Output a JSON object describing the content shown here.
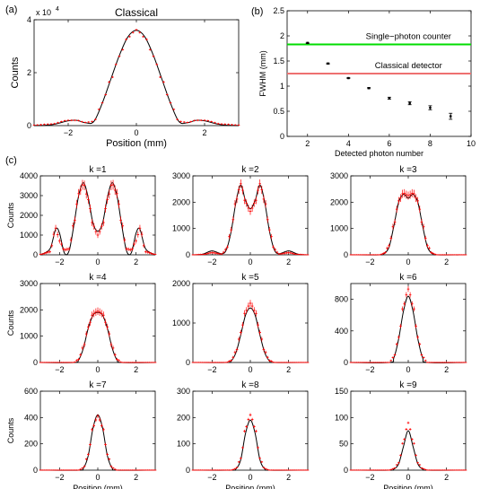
{
  "panel_labels": [
    "(a)",
    "(b)",
    "(c)"
  ],
  "chart_data": [
    {
      "id": "classical",
      "type": "line",
      "panel": "(a)",
      "title": "Classical",
      "xlabel": "Position (mm)",
      "ylabel": "Counts",
      "exponent_label": "x 10",
      "exponent_power": "4",
      "xlim": [
        -3,
        3
      ],
      "ylim": [
        0,
        4
      ],
      "xticks": [
        -2,
        0,
        2
      ],
      "yticks": [
        0,
        2,
        4
      ],
      "x": [
        -3.0,
        -2.5,
        -2.0,
        -1.75,
        -1.5,
        -1.25,
        -1.0,
        -0.75,
        -0.5,
        -0.25,
        0.0,
        0.25,
        0.5,
        0.75,
        1.0,
        1.25,
        1.5,
        1.75,
        2.0,
        2.5,
        3.0
      ],
      "series": [
        {
          "values": [
            0.0,
            0.03,
            0.18,
            0.2,
            0.11,
            0.15,
            0.85,
            1.75,
            2.65,
            3.35,
            3.6,
            3.35,
            2.65,
            1.75,
            0.85,
            0.15,
            0.11,
            0.2,
            0.18,
            0.03,
            0.0
          ],
          "color": "#000000",
          "style": "line"
        },
        {
          "values": [
            0.02,
            0.06,
            0.2,
            0.2,
            0.12,
            0.16,
            0.86,
            1.74,
            2.62,
            3.33,
            3.62,
            3.33,
            2.62,
            1.74,
            0.86,
            0.16,
            0.12,
            0.2,
            0.2,
            0.06,
            0.02
          ],
          "color": "#ff0000",
          "style": "errorbar"
        }
      ]
    },
    {
      "id": "fwhm",
      "type": "scatter",
      "panel": "(b)",
      "xlabel": "Detected photon number",
      "ylabel": "FWHM (mm)",
      "xlim": [
        1,
        10
      ],
      "ylim": [
        0,
        2.5
      ],
      "xticks": [
        2,
        4,
        6,
        8,
        10
      ],
      "yticks": [
        0,
        0.5,
        1,
        1.5,
        2,
        2.5
      ],
      "x": [
        2,
        3,
        4,
        5,
        6,
        7,
        8,
        9
      ],
      "values": [
        1.86,
        1.45,
        1.16,
        0.96,
        0.76,
        0.66,
        0.57,
        0.4
      ],
      "errors": [
        0.01,
        0.01,
        0.01,
        0.01,
        0.02,
        0.03,
        0.04,
        0.06
      ],
      "reference_lines": [
        {
          "label": "Single−photon counter",
          "y": 1.83,
          "color": "#00dd00"
        },
        {
          "label": "Classical detector",
          "y": 1.25,
          "color": "#ee7070"
        }
      ]
    },
    {
      "id": "k1",
      "type": "line",
      "panel": "(c)",
      "title": "k =1",
      "ylabel": "Counts",
      "xlabel": "",
      "xlim": [
        -3,
        3
      ],
      "ylim": [
        0,
        4000
      ],
      "xticks": [
        -2,
        0,
        2
      ],
      "yticks": [
        0,
        1000,
        2000,
        3000,
        4000
      ],
      "x": [
        -3.0,
        -2.5,
        -2.2,
        -2.0,
        -1.75,
        -1.5,
        -1.25,
        -1.0,
        -0.75,
        -0.5,
        -0.25,
        0.0,
        0.25,
        0.5,
        0.75,
        1.0,
        1.25,
        1.5,
        1.75,
        2.0,
        2.2,
        2.5,
        3.0
      ],
      "series": [
        {
          "values": [
            0,
            300,
            1300,
            1100,
            100,
            200,
            1500,
            3000,
            3650,
            2900,
            1600,
            1200,
            1600,
            2900,
            3650,
            3000,
            1500,
            200,
            100,
            1100,
            1300,
            300,
            0
          ],
          "color": "#000000",
          "style": "line"
        },
        {
          "values": [
            20,
            150,
            1350,
            700,
            250,
            300,
            1600,
            3100,
            3600,
            2800,
            1500,
            1000,
            1500,
            2800,
            3600,
            3100,
            1600,
            300,
            250,
            700,
            1350,
            150,
            20
          ],
          "color": "#ff0000",
          "style": "errorbar"
        }
      ]
    },
    {
      "id": "k2",
      "type": "line",
      "panel": "(c)",
      "title": "k =2",
      "ylabel": "",
      "xlabel": "",
      "xlim": [
        -3,
        3
      ],
      "ylim": [
        0,
        3000
      ],
      "xticks": [
        -2,
        0,
        2
      ],
      "yticks": [
        0,
        1000,
        2000,
        3000
      ],
      "x": [
        -3.0,
        -2.5,
        -2.0,
        -1.5,
        -1.25,
        -1.0,
        -0.75,
        -0.5,
        -0.25,
        0.0,
        0.25,
        0.5,
        0.75,
        1.0,
        1.25,
        1.5,
        2.0,
        2.5,
        3.0
      ],
      "series": [
        {
          "values": [
            0,
            20,
            150,
            40,
            200,
            900,
            2000,
            2650,
            2050,
            1750,
            2050,
            2650,
            2000,
            900,
            200,
            40,
            150,
            20,
            0
          ],
          "color": "#000000",
          "style": "line"
        },
        {
          "values": [
            0,
            10,
            80,
            30,
            220,
            950,
            2050,
            2700,
            2000,
            1650,
            2000,
            2700,
            2050,
            950,
            220,
            30,
            80,
            10,
            0
          ],
          "color": "#ff0000",
          "style": "errorbar"
        }
      ]
    },
    {
      "id": "k3",
      "type": "line",
      "panel": "(c)",
      "title": "k =3",
      "ylabel": "",
      "xlabel": "",
      "xlim": [
        -3,
        3
      ],
      "ylim": [
        0,
        3000
      ],
      "xticks": [
        -2,
        0,
        2
      ],
      "yticks": [
        0,
        1000,
        2000,
        3000
      ],
      "x": [
        -3.0,
        -1.5,
        -1.25,
        -1.0,
        -0.75,
        -0.5,
        -0.25,
        0.0,
        0.25,
        0.5,
        0.75,
        1.0,
        1.25,
        1.5,
        3.0
      ],
      "series": [
        {
          "values": [
            0,
            0,
            50,
            300,
            1100,
            2000,
            2300,
            2150,
            2300,
            2000,
            1100,
            300,
            50,
            0,
            0
          ],
          "color": "#000000",
          "style": "line"
        },
        {
          "values": [
            0,
            0,
            60,
            350,
            1150,
            2050,
            2350,
            2250,
            2350,
            2050,
            1150,
            350,
            60,
            0,
            0
          ],
          "color": "#ff0000",
          "style": "errorbar"
        }
      ]
    },
    {
      "id": "k4",
      "type": "line",
      "panel": "(c)",
      "title": "k =4",
      "ylabel": "Counts",
      "xlabel": "",
      "xlim": [
        -3,
        3
      ],
      "ylim": [
        0,
        3000
      ],
      "xticks": [
        -2,
        0,
        2
      ],
      "yticks": [
        0,
        1000,
        2000,
        3000
      ],
      "x": [
        -3.0,
        -1.25,
        -1.0,
        -0.75,
        -0.5,
        -0.25,
        0.0,
        0.25,
        0.5,
        0.75,
        1.0,
        1.25,
        3.0
      ],
      "series": [
        {
          "values": [
            0,
            0,
            100,
            550,
            1300,
            1800,
            1900,
            1800,
            1300,
            550,
            100,
            0,
            0
          ],
          "color": "#000000",
          "style": "line"
        },
        {
          "values": [
            0,
            0,
            120,
            600,
            1350,
            1850,
            1950,
            1850,
            1350,
            600,
            120,
            0,
            0
          ],
          "color": "#ff0000",
          "style": "errorbar"
        }
      ]
    },
    {
      "id": "k5",
      "type": "line",
      "panel": "(c)",
      "title": "k =5",
      "ylabel": "",
      "xlabel": "",
      "xlim": [
        -3,
        3
      ],
      "ylim": [
        0,
        2000
      ],
      "xticks": [
        -2,
        0,
        2
      ],
      "yticks": [
        0,
        1000,
        2000
      ],
      "x": [
        -3.0,
        -1.25,
        -1.0,
        -0.75,
        -0.5,
        -0.25,
        0.0,
        0.25,
        0.5,
        0.75,
        1.0,
        1.25,
        3.0
      ],
      "series": [
        {
          "values": [
            0,
            0,
            40,
            250,
            700,
            1200,
            1380,
            1200,
            700,
            250,
            40,
            0,
            0
          ],
          "color": "#000000",
          "style": "line"
        },
        {
          "values": [
            0,
            0,
            50,
            280,
            760,
            1300,
            1500,
            1300,
            760,
            280,
            50,
            0,
            0
          ],
          "color": "#ff0000",
          "style": "errorbar"
        }
      ]
    },
    {
      "id": "k6",
      "type": "line",
      "panel": "(c)",
      "title": "k =6",
      "ylabel": "",
      "xlabel": "",
      "xlim": [
        -3,
        3
      ],
      "ylim": [
        0,
        1000
      ],
      "xticks": [
        -2,
        0,
        2
      ],
      "yticks": [
        0,
        400,
        800
      ],
      "x": [
        -3.0,
        -1.0,
        -0.75,
        -0.5,
        -0.25,
        0.0,
        0.25,
        0.5,
        0.75,
        1.0,
        3.0
      ],
      "series": [
        {
          "values": [
            0,
            0,
            60,
            300,
            650,
            840,
            650,
            300,
            60,
            0,
            0
          ],
          "color": "#000000",
          "style": "line"
        },
        {
          "values": [
            0,
            0,
            70,
            320,
            720,
            930,
            720,
            320,
            70,
            0,
            0
          ],
          "color": "#ff0000",
          "style": "errorbar"
        }
      ]
    },
    {
      "id": "k7",
      "type": "line",
      "panel": "(c)",
      "title": "k =7",
      "ylabel": "Counts",
      "xlabel": "Position (mm)",
      "xlim": [
        -3,
        3
      ],
      "ylim": [
        0,
        600
      ],
      "xticks": [
        -2,
        0,
        2
      ],
      "yticks": [
        0,
        200,
        400,
        600
      ],
      "x": [
        -3.0,
        -1.0,
        -0.75,
        -0.5,
        -0.25,
        0.0,
        0.25,
        0.5,
        0.75,
        1.0,
        3.0
      ],
      "series": [
        {
          "values": [
            0,
            0,
            15,
            110,
            320,
            420,
            320,
            110,
            15,
            0,
            0
          ],
          "color": "#000000",
          "style": "line"
        },
        {
          "values": [
            0,
            0,
            18,
            120,
            330,
            410,
            330,
            120,
            18,
            0,
            0
          ],
          "color": "#ff0000",
          "style": "errorbar"
        }
      ]
    },
    {
      "id": "k8",
      "type": "line",
      "panel": "(c)",
      "title": "k =8",
      "ylabel": "",
      "xlabel": "Position (mm)",
      "xlim": [
        -3,
        3
      ],
      "ylim": [
        0,
        300
      ],
      "xticks": [
        -2,
        0,
        2
      ],
      "yticks": [
        0,
        100,
        200,
        300
      ],
      "x": [
        -3.0,
        -1.0,
        -0.75,
        -0.5,
        -0.25,
        0.0,
        0.25,
        0.5,
        0.75,
        1.0,
        3.0
      ],
      "series": [
        {
          "values": [
            0,
            0,
            5,
            40,
            140,
            190,
            140,
            40,
            5,
            0,
            0
          ],
          "color": "#000000",
          "style": "line"
        },
        {
          "values": [
            0,
            0,
            6,
            45,
            160,
            210,
            160,
            45,
            6,
            0,
            0
          ],
          "color": "#ff0000",
          "style": "errorbar"
        }
      ]
    },
    {
      "id": "k9",
      "type": "line",
      "panel": "(c)",
      "title": "k =9",
      "ylabel": "",
      "xlabel": "Position (mm)",
      "xlim": [
        -3,
        3
      ],
      "ylim": [
        0,
        150
      ],
      "xticks": [
        -2,
        0,
        2
      ],
      "yticks": [
        0,
        50,
        100,
        150
      ],
      "x": [
        -3.0,
        -1.0,
        -0.75,
        -0.5,
        -0.25,
        0.0,
        0.25,
        0.5,
        0.75,
        1.0,
        3.0
      ],
      "series": [
        {
          "values": [
            0,
            0,
            2,
            12,
            45,
            75,
            45,
            12,
            2,
            0,
            0
          ],
          "color": "#000000",
          "style": "line"
        },
        {
          "values": [
            0,
            0,
            3,
            14,
            55,
            90,
            55,
            14,
            3,
            0,
            0
          ],
          "color": "#ff0000",
          "style": "errorbar"
        }
      ]
    }
  ]
}
